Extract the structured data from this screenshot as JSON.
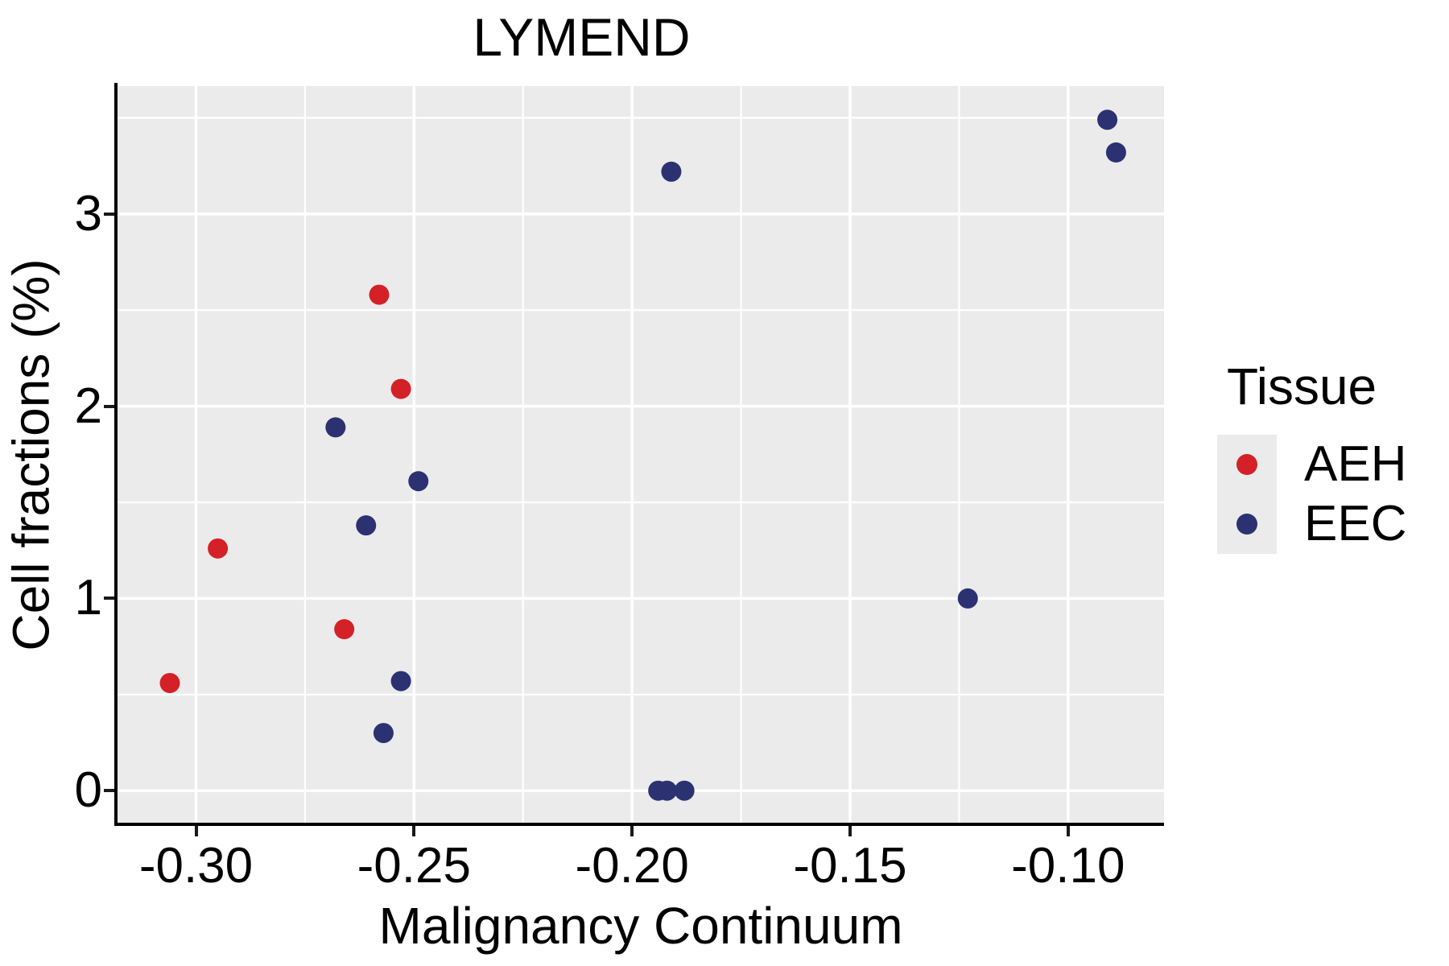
{
  "title": "LYMEND",
  "axes": {
    "x": {
      "label": "Malignancy Continuum",
      "ticks": [
        -0.3,
        -0.25,
        -0.2,
        -0.15,
        -0.1
      ],
      "tick_labels": [
        "-0.30",
        "-0.25",
        "-0.20",
        "-0.15",
        "-0.10"
      ],
      "minor_ticks": [
        -0.275,
        -0.225,
        -0.175,
        -0.125
      ]
    },
    "y": {
      "label": "Cell fractions (%)",
      "ticks": [
        0,
        1,
        2,
        3
      ],
      "tick_labels": [
        "0",
        "1",
        "2",
        "3"
      ],
      "minor_ticks": [
        0.5,
        1.5,
        2.5,
        3.5
      ]
    }
  },
  "legend": {
    "title": "Tissue",
    "entries": [
      {
        "label": "AEH",
        "color": "#D42127"
      },
      {
        "label": "EEC",
        "color": "#2B3171"
      }
    ]
  },
  "colors": {
    "panel_bg": "#EBEBEB",
    "grid_major": "#FFFFFF",
    "grid_minor": "#FFFFFF",
    "axis_line": "#000000",
    "aeh": "#D42127",
    "eec": "#2B3171"
  },
  "chart_data": {
    "type": "scatter",
    "title": "LYMEND",
    "xlabel": "Malignancy Continuum",
    "ylabel": "Cell fractions (%)",
    "xlim": [
      -0.318,
      -0.078
    ],
    "ylim": [
      -0.175,
      3.665
    ],
    "grid": true,
    "legend_title": "Tissue",
    "legend_position": "right",
    "point_radius_px": 12.5,
    "series": [
      {
        "name": "AEH",
        "color": "#D42127",
        "points": [
          [
            -0.306,
            0.56
          ],
          [
            -0.295,
            1.26
          ],
          [
            -0.266,
            0.84
          ],
          [
            -0.258,
            2.58
          ],
          [
            -0.253,
            2.09
          ]
        ]
      },
      {
        "name": "EEC",
        "color": "#2B3171",
        "points": [
          [
            -0.268,
            1.89
          ],
          [
            -0.261,
            1.38
          ],
          [
            -0.257,
            0.3
          ],
          [
            -0.253,
            0.57
          ],
          [
            -0.249,
            1.61
          ],
          [
            -0.194,
            0.0
          ],
          [
            -0.192,
            0.0
          ],
          [
            -0.188,
            0.0
          ],
          [
            -0.191,
            3.22
          ],
          [
            -0.123,
            1.0
          ],
          [
            -0.091,
            3.49
          ],
          [
            -0.089,
            3.32
          ]
        ]
      }
    ]
  }
}
